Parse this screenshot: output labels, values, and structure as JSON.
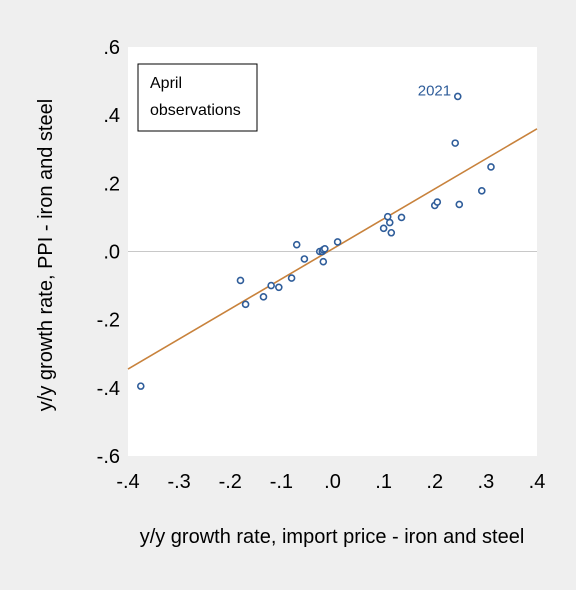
{
  "chart_data": {
    "type": "scatter",
    "title": "",
    "xlabel": "y/y growth rate, import price - iron and steel",
    "ylabel": "y/y growth rate, PPI - iron and steel",
    "xlim": [
      -0.4,
      0.4
    ],
    "ylim": [
      -0.6,
      0.6
    ],
    "xticks": [
      -0.4,
      -0.3,
      -0.2,
      -0.1,
      0.0,
      0.1,
      0.2,
      0.3,
      0.4
    ],
    "yticks": [
      -0.6,
      -0.4,
      -0.2,
      0.0,
      0.2,
      0.4,
      0.6
    ],
    "xtick_labels": [
      "-.4",
      "-.3",
      "-.2",
      "-.1",
      ".0",
      ".1",
      ".2",
      ".3",
      ".4"
    ],
    "ytick_labels": [
      "-.6",
      "-.4",
      "-.2",
      ".0",
      ".2",
      ".4",
      ".6"
    ],
    "grid": false,
    "zero_line": true,
    "legend": {
      "lines": [
        "April",
        "observations"
      ],
      "placement": "top-left"
    },
    "annotations": [
      {
        "text": "2021",
        "x": 0.245,
        "y": 0.455
      }
    ],
    "fit_line": {
      "x": [
        -0.4,
        0.4
      ],
      "y": [
        -0.345,
        0.36
      ],
      "color": "#c8823c"
    },
    "marker_color": "#2f5d9a",
    "series": [
      {
        "points": [
          [
            -0.375,
            -0.395
          ],
          [
            -0.18,
            -0.085
          ],
          [
            -0.17,
            -0.155
          ],
          [
            -0.135,
            -0.133
          ],
          [
            -0.12,
            -0.1
          ],
          [
            -0.105,
            -0.105
          ],
          [
            -0.08,
            -0.078
          ],
          [
            -0.07,
            0.02
          ],
          [
            -0.055,
            -0.022
          ],
          [
            -0.025,
            0.0
          ],
          [
            -0.02,
            0.0
          ],
          [
            -0.018,
            0.005
          ],
          [
            -0.015,
            0.008
          ],
          [
            -0.018,
            -0.03
          ],
          [
            0.01,
            0.028
          ],
          [
            0.1,
            0.068
          ],
          [
            0.108,
            0.102
          ],
          [
            0.112,
            0.085
          ],
          [
            0.115,
            0.055
          ],
          [
            0.135,
            0.1
          ],
          [
            0.2,
            0.135
          ],
          [
            0.205,
            0.145
          ],
          [
            0.24,
            0.318
          ],
          [
            0.245,
            0.455
          ],
          [
            0.248,
            0.138
          ],
          [
            0.292,
            0.178
          ],
          [
            0.31,
            0.248
          ]
        ]
      }
    ]
  }
}
